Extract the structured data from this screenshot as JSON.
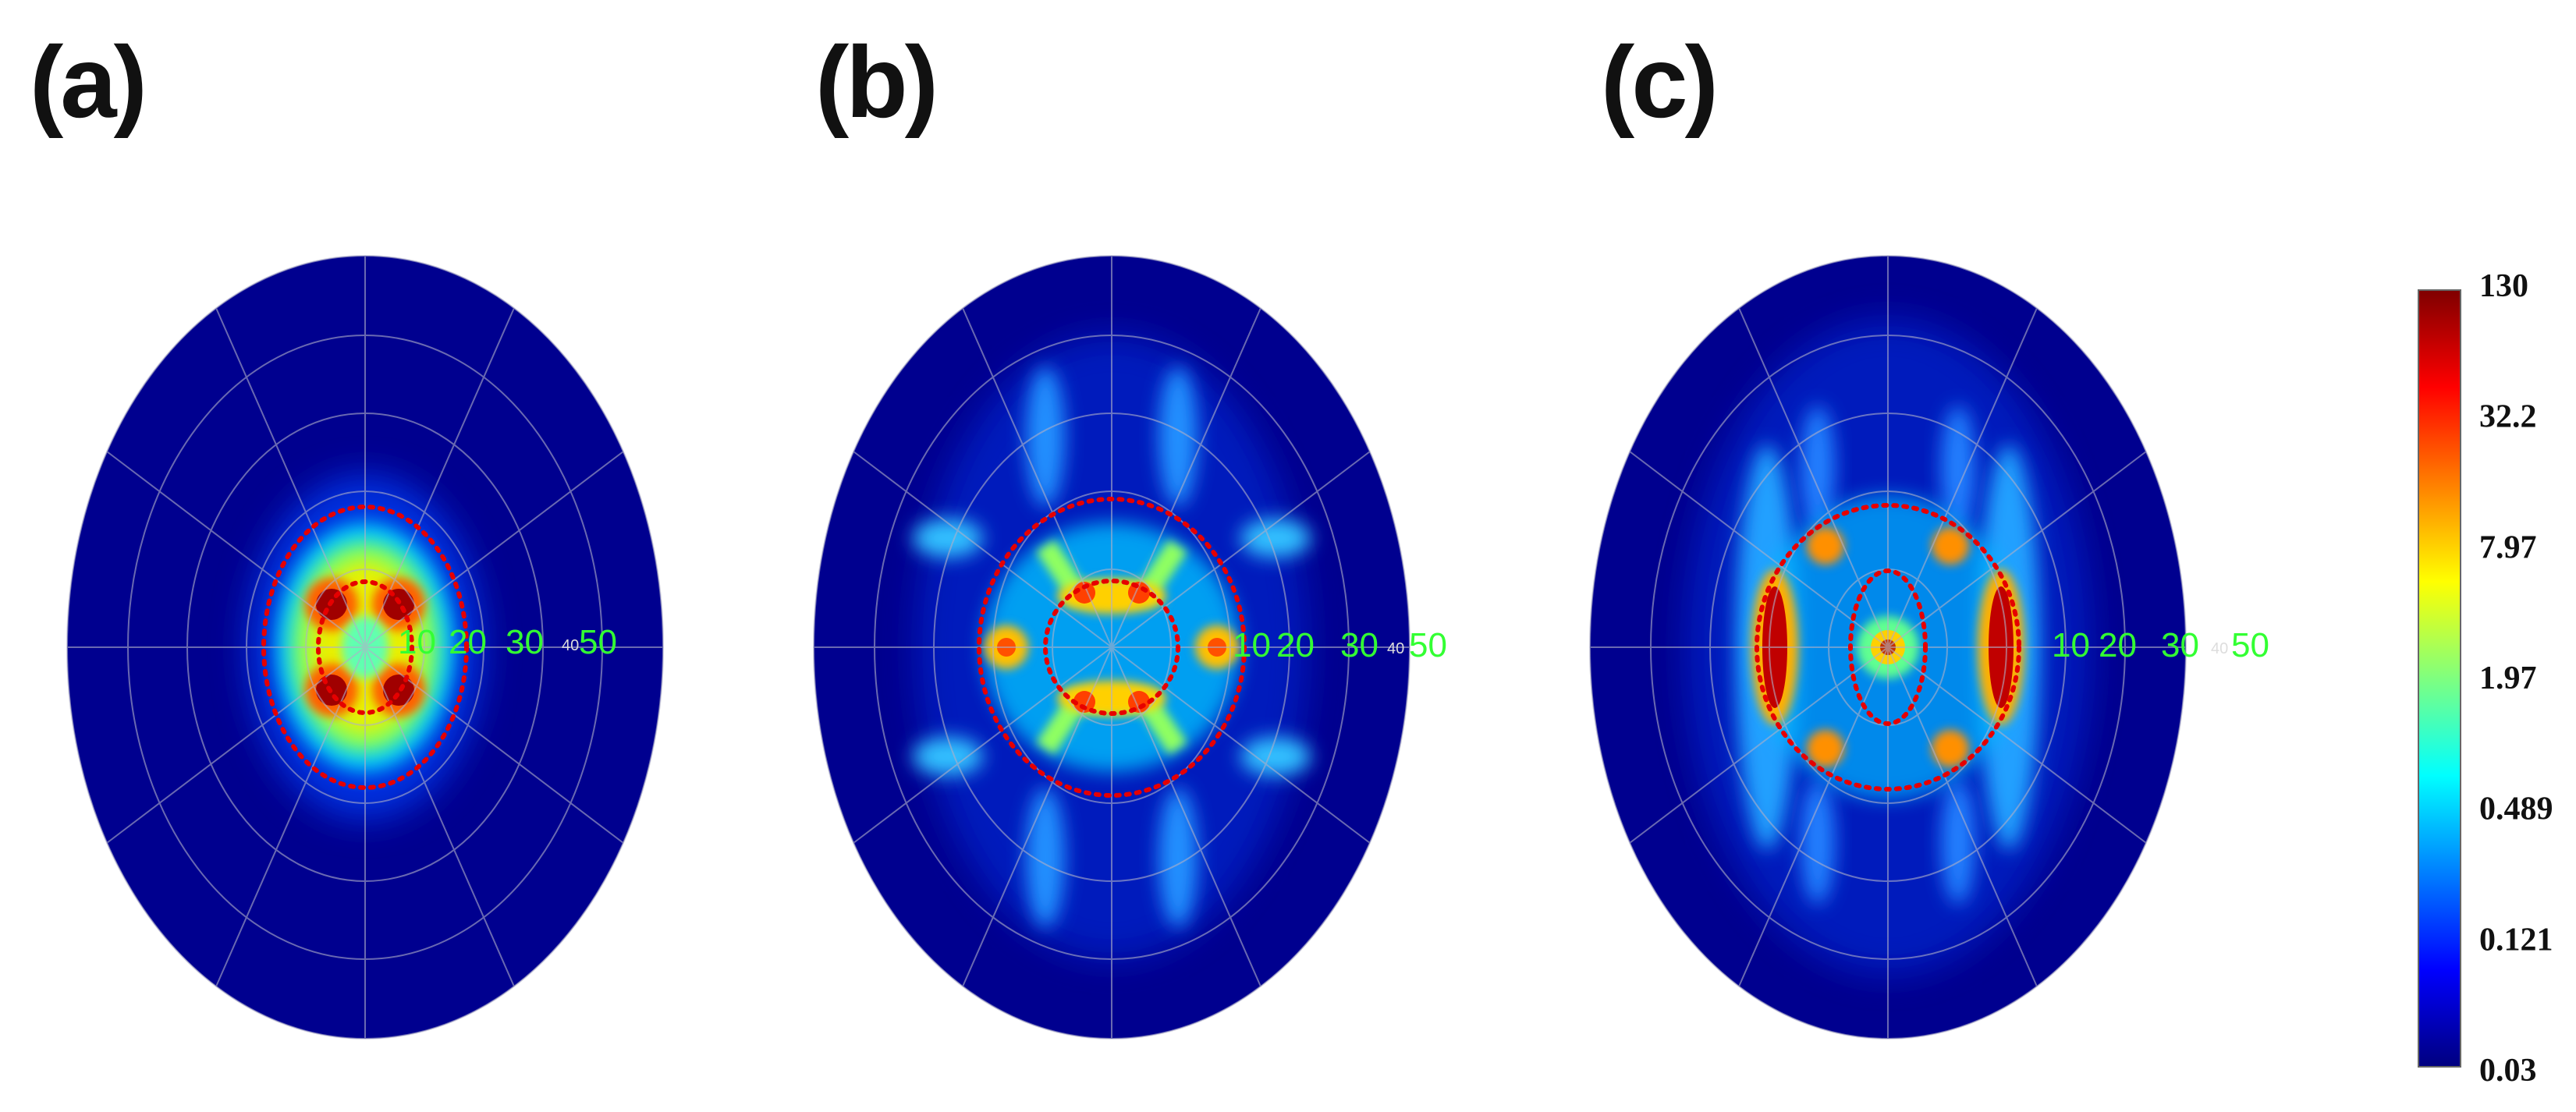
{
  "panels": [
    {
      "label": "(a)",
      "ring_labels": [
        "10",
        "20",
        "30",
        "40",
        "50"
      ]
    },
    {
      "label": "(b)",
      "ring_labels": [
        "10",
        "20",
        "30",
        "40",
        "50"
      ]
    },
    {
      "label": "(c)",
      "ring_labels": [
        "10",
        "20",
        "30",
        "40",
        "50"
      ]
    }
  ],
  "colors": {
    "background_field": "#00008f",
    "grid": "#b0b0c8",
    "marker": "#e60000",
    "ring_label": "#33ff33"
  },
  "chart_data": {
    "type": "heatmap",
    "projection": "polar",
    "radial_ticks": [
      10,
      20,
      30,
      40,
      50
    ],
    "angular_gridlines_deg": [
      0,
      30,
      60,
      90,
      120,
      150,
      180,
      210,
      240,
      270,
      300,
      330
    ],
    "colorbar": {
      "scale": "log",
      "ticks": [
        "130",
        "32.2",
        "7.97",
        "1.97",
        "0.489",
        "0.121",
        "0.03"
      ],
      "range": [
        0.03,
        130
      ]
    }
  }
}
